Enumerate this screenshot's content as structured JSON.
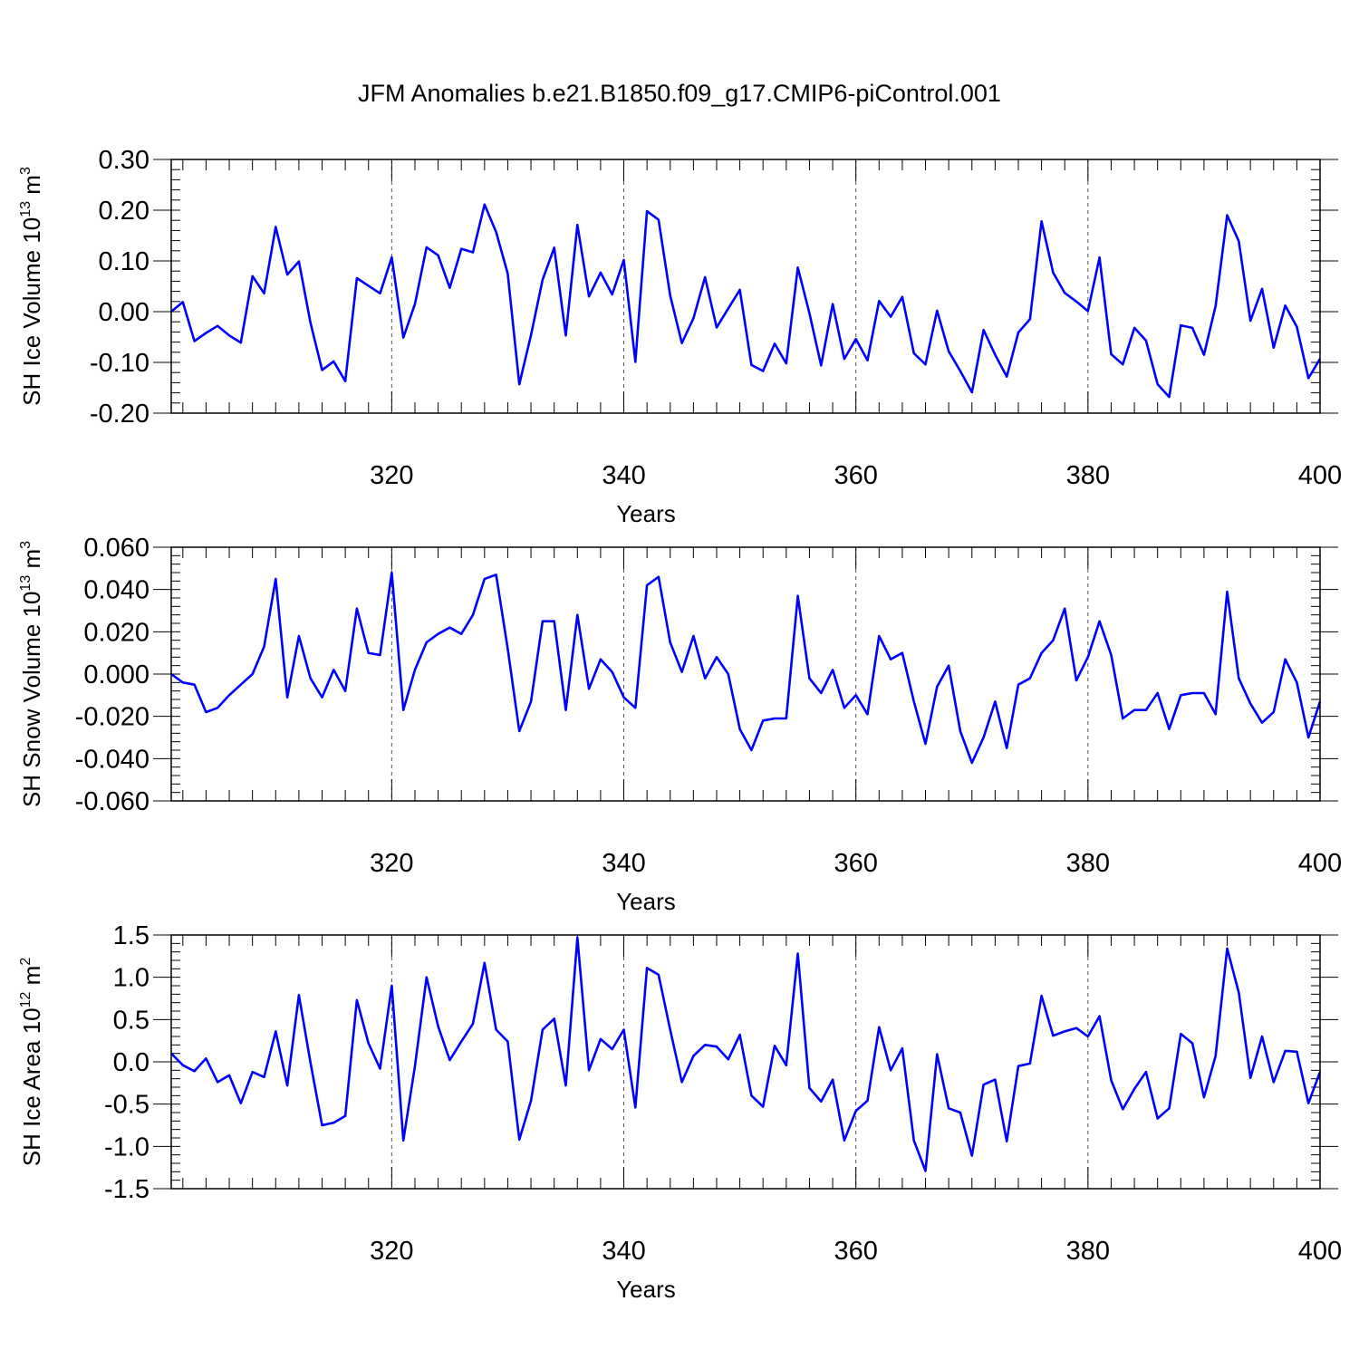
{
  "title": "JFM Anomalies b.e21.B1850.f09_g17.CMIP6-piControl.001",
  "colors": {
    "line": "#0000ff",
    "axis": "#000000",
    "grid": "#555555"
  },
  "chart_data": [
    {
      "type": "line",
      "ylabel_main": "SH Ice Volume 10",
      "ylabel_exp": "13",
      "ylabel_unit": " m",
      "ylabel_unit_exp": "3",
      "xlabel": "Years",
      "xlim": [
        301,
        400
      ],
      "ylim": [
        -0.2,
        0.3
      ],
      "yticks": [
        "0.30",
        "0.20",
        "0.10",
        "0.00",
        "-0.10",
        "-0.20"
      ],
      "xticks": [
        "320",
        "340",
        "360",
        "380",
        "400"
      ],
      "grid": "vertical dashed at 320, 340, 360, 380",
      "x_start": 301,
      "values": [
        0.0,
        0.019,
        -0.058,
        -0.042,
        -0.028,
        -0.047,
        -0.061,
        0.07,
        0.036,
        0.167,
        0.073,
        0.099,
        -0.022,
        -0.115,
        -0.098,
        -0.137,
        0.066,
        0.051,
        0.036,
        0.107,
        -0.051,
        0.015,
        0.127,
        0.111,
        0.047,
        0.124,
        0.117,
        0.211,
        0.157,
        0.075,
        -0.143,
        -0.046,
        0.063,
        0.126,
        -0.047,
        0.171,
        0.03,
        0.077,
        0.034,
        0.102,
        -0.099,
        0.198,
        0.181,
        0.032,
        -0.062,
        -0.013,
        0.068,
        -0.031,
        0.006,
        0.043,
        -0.105,
        -0.117,
        -0.063,
        -0.102,
        0.087,
        -0.003,
        -0.106,
        0.015,
        -0.093,
        -0.054,
        -0.096,
        0.021,
        -0.01,
        0.029,
        -0.082,
        -0.104,
        0.002,
        -0.078,
        -0.117,
        -0.159,
        -0.036,
        -0.085,
        -0.128,
        -0.041,
        -0.015,
        0.178,
        0.077,
        0.037,
        0.02,
        0.001,
        0.107,
        -0.084,
        -0.104,
        -0.032,
        -0.057,
        -0.143,
        -0.168,
        -0.027,
        -0.032,
        -0.085,
        0.011,
        0.19,
        0.139,
        -0.018,
        0.045,
        -0.071,
        0.012,
        -0.03,
        -0.131,
        -0.093
      ]
    },
    {
      "type": "line",
      "ylabel_main": "SH Snow Volume 10",
      "ylabel_exp": "13",
      "ylabel_unit": " m",
      "ylabel_unit_exp": "3",
      "xlabel": "Years",
      "xlim": [
        301,
        400
      ],
      "ylim": [
        -0.06,
        0.06
      ],
      "yticks": [
        "0.060",
        "0.040",
        "0.020",
        "0.000",
        "-0.020",
        "-0.040",
        "-0.060"
      ],
      "xticks": [
        "320",
        "340",
        "360",
        "380",
        "400"
      ],
      "grid": "vertical dashed at 320, 340, 360, 380",
      "x_start": 301,
      "values": [
        0.0,
        -0.004,
        -0.005,
        -0.018,
        -0.016,
        -0.01,
        -0.005,
        0.0,
        0.013,
        0.045,
        -0.011,
        0.018,
        -0.002,
        -0.011,
        0.002,
        -0.008,
        0.031,
        0.01,
        0.009,
        0.048,
        -0.017,
        0.002,
        0.015,
        0.019,
        0.022,
        0.019,
        0.028,
        0.045,
        0.047,
        0.012,
        -0.027,
        -0.013,
        0.025,
        0.025,
        -0.017,
        0.028,
        -0.007,
        0.007,
        0.001,
        -0.011,
        -0.016,
        0.042,
        0.046,
        0.015,
        0.001,
        0.018,
        -0.002,
        0.008,
        0.0,
        -0.026,
        -0.036,
        -0.022,
        -0.021,
        -0.021,
        0.037,
        -0.002,
        -0.009,
        0.002,
        -0.016,
        -0.01,
        -0.019,
        0.018,
        0.007,
        0.01,
        -0.013,
        -0.033,
        -0.006,
        0.004,
        -0.027,
        -0.042,
        -0.03,
        -0.013,
        -0.035,
        -0.005,
        -0.002,
        0.01,
        0.016,
        0.031,
        -0.003,
        0.008,
        0.025,
        0.009,
        -0.021,
        -0.017,
        -0.017,
        -0.009,
        -0.026,
        -0.01,
        -0.009,
        -0.009,
        -0.019,
        0.039,
        -0.002,
        -0.014,
        -0.023,
        -0.018,
        0.007,
        -0.004,
        -0.03,
        -0.013
      ]
    },
    {
      "type": "line",
      "ylabel_main": "SH Ice Area 10",
      "ylabel_exp": "12",
      "ylabel_unit": " m",
      "ylabel_unit_exp": "2",
      "xlabel": "Years",
      "xlim": [
        301,
        400
      ],
      "ylim": [
        -1.5,
        1.5
      ],
      "yticks": [
        "1.5",
        "1.0",
        "0.5",
        "0.0",
        "-0.5",
        "-1.0",
        "-1.5"
      ],
      "xticks": [
        "320",
        "340",
        "360",
        "380",
        "400"
      ],
      "grid": "vertical dashed at 320, 340, 360, 380",
      "x_start": 301,
      "values": [
        0.1,
        -0.04,
        -0.11,
        0.04,
        -0.24,
        -0.16,
        -0.49,
        -0.12,
        -0.18,
        0.36,
        -0.28,
        0.79,
        -0.01,
        -0.75,
        -0.72,
        -0.64,
        0.73,
        0.22,
        -0.08,
        0.9,
        -0.93,
        -0.05,
        1.0,
        0.42,
        0.02,
        0.24,
        0.45,
        1.17,
        0.38,
        0.24,
        -0.92,
        -0.46,
        0.38,
        0.51,
        -0.28,
        1.47,
        -0.1,
        0.27,
        0.15,
        0.38,
        -0.54,
        1.11,
        1.03,
        0.38,
        -0.24,
        0.07,
        0.2,
        0.18,
        0.03,
        0.32,
        -0.4,
        -0.53,
        0.19,
        -0.04,
        1.28,
        -0.31,
        -0.47,
        -0.21,
        -0.93,
        -0.58,
        -0.46,
        0.41,
        -0.1,
        0.16,
        -0.93,
        -1.29,
        0.09,
        -0.55,
        -0.6,
        -1.11,
        -0.27,
        -0.21,
        -0.94,
        -0.05,
        -0.02,
        0.78,
        0.31,
        0.36,
        0.4,
        0.3,
        0.54,
        -0.22,
        -0.56,
        -0.32,
        -0.12,
        -0.67,
        -0.55,
        0.33,
        0.22,
        -0.42,
        0.07,
        1.34,
        0.82,
        -0.19,
        0.3,
        -0.24,
        0.13,
        0.12,
        -0.49,
        -0.12
      ]
    }
  ]
}
